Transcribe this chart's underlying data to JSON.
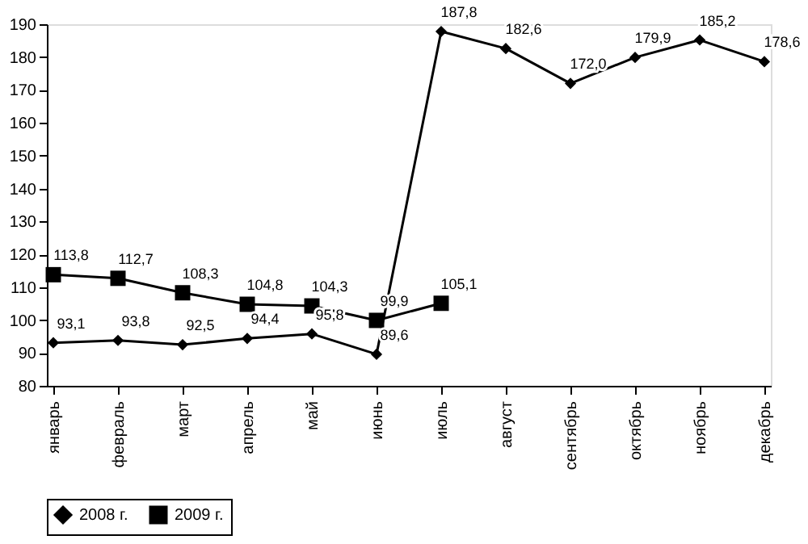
{
  "chart_data": {
    "type": "line",
    "categories": [
      "январь",
      "февраль",
      "март",
      "апрель",
      "май",
      "июнь",
      "июль",
      "август",
      "сентябрь",
      "октябрь",
      "ноябрь",
      "декабрь"
    ],
    "series": [
      {
        "name": "2008 г.",
        "color": "#000000",
        "marker": "diamond",
        "values": [
          93.1,
          93.8,
          92.5,
          94.4,
          95.8,
          89.6,
          187.8,
          182.6,
          172.0,
          179.9,
          185.2,
          178.6
        ],
        "value_labels": [
          "93,1",
          "93,8",
          "92,5",
          "94,4",
          "95,8",
          "89,6",
          "187,8",
          "182,6",
          "172,0",
          "179,9",
          "185,2",
          "178,6"
        ]
      },
      {
        "name": "2009 г.",
        "color": "#000000",
        "marker": "square",
        "values": [
          113.8,
          112.7,
          108.3,
          104.8,
          104.3,
          99.9,
          105.1,
          null,
          null,
          null,
          null,
          null
        ],
        "value_labels": [
          "113,8",
          "112,7",
          "108,3",
          "104,8",
          "104,3",
          "99,9",
          "105,1",
          null,
          null,
          null,
          null,
          null
        ]
      }
    ],
    "ylim": [
      80,
      190
    ],
    "yticks": [
      80,
      90,
      100,
      110,
      120,
      130,
      140,
      150,
      160,
      170,
      180,
      190
    ],
    "grid": false,
    "legend": "bottom",
    "line_style": "solid"
  }
}
